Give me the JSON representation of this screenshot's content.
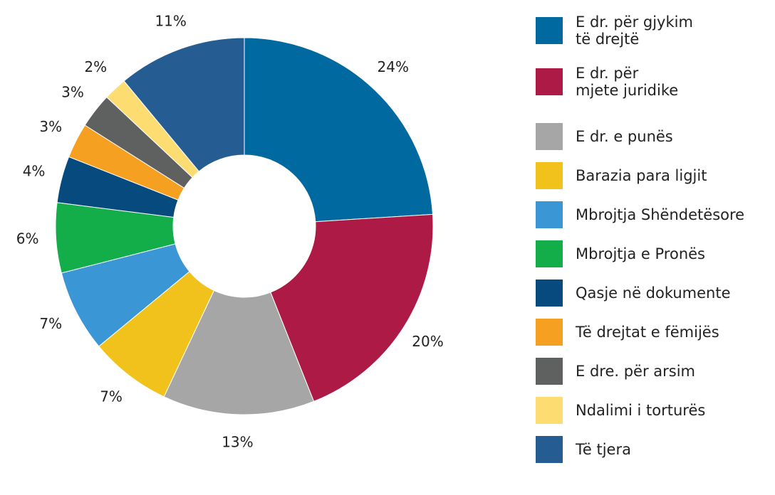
{
  "chart_data": {
    "type": "donut",
    "categories": [
      "E dr. për gjykim\ntë drejtë",
      "E dr. për\nmjete juridike",
      "E dr. e punës",
      "Barazia para ligjit",
      "Mbrojtja Shëndetësore",
      "Mbrojtja e Pronës",
      "Qasje në dokumente",
      "Të drejtat e fëmijës",
      "E dre. për arsim",
      "Ndalimi i torturës",
      "Të tjera"
    ],
    "values": [
      24,
      20,
      13,
      7,
      7,
      6,
      4,
      3,
      3,
      2,
      11
    ],
    "value_labels": [
      "24%",
      "20%",
      "13%",
      "7%",
      "7%",
      "6%",
      "4%",
      "3%",
      "3%",
      "2%",
      "11%"
    ],
    "colors": [
      "#0069a0",
      "#ad1a45",
      "#a6a6a6",
      "#f0c21b",
      "#3a96d4",
      "#13ad4a",
      "#064a7e",
      "#f5a020",
      "#5f6060",
      "#fddc72",
      "#255d93"
    ],
    "legend": "right"
  }
}
